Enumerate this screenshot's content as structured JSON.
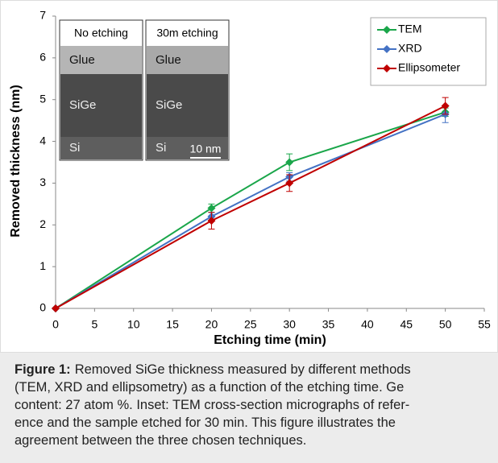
{
  "chart_data": {
    "type": "line",
    "x_label": "Etching time (min)",
    "y_label": "Removed thickness (nm)",
    "x": [
      0,
      20,
      30,
      50
    ],
    "series": [
      {
        "name": "TEM",
        "color": "#1aa64a",
        "values": [
          0,
          2.4,
          3.5,
          4.7
        ],
        "errors": [
          0,
          0.1,
          0.2,
          0.1
        ]
      },
      {
        "name": "XRD",
        "color": "#4472c4",
        "values": [
          0,
          2.2,
          3.15,
          4.65
        ],
        "errors": [
          0,
          0.1,
          0.1,
          0.2
        ]
      },
      {
        "name": "Ellipsometer",
        "color": "#c00000",
        "values": [
          0,
          2.1,
          3.0,
          4.85
        ],
        "errors": [
          0,
          0.2,
          0.2,
          0.2
        ]
      }
    ],
    "xlim": [
      0,
      55
    ],
    "xticks": [
      0,
      5,
      10,
      15,
      20,
      25,
      30,
      35,
      40,
      45,
      50,
      55
    ],
    "ylim": [
      0,
      7
    ],
    "yticks": [
      0,
      1,
      2,
      3,
      4,
      5,
      6,
      7
    ],
    "grid": false,
    "legend": "top-right",
    "inset": {
      "panels": [
        {
          "title": "No etching",
          "layers": [
            "Glue",
            "SiGe",
            "Si"
          ]
        },
        {
          "title": "30m etching",
          "layers": [
            "Glue",
            "SiGe",
            "Si"
          ],
          "scale_bar": "10 nm"
        }
      ]
    }
  },
  "caption": {
    "label": "Figure 1:",
    "lines": [
      "Removed SiGe thickness measured by different methods",
      "(TEM, XRD and ellipsometry) as a function of the etching time. Ge",
      "content: 27 atom %. Inset: TEM cross-section micrographs of refer-",
      "ence and the sample etched for 30 min. This figure illustrates the",
      "agreement between the three chosen techniques."
    ]
  }
}
